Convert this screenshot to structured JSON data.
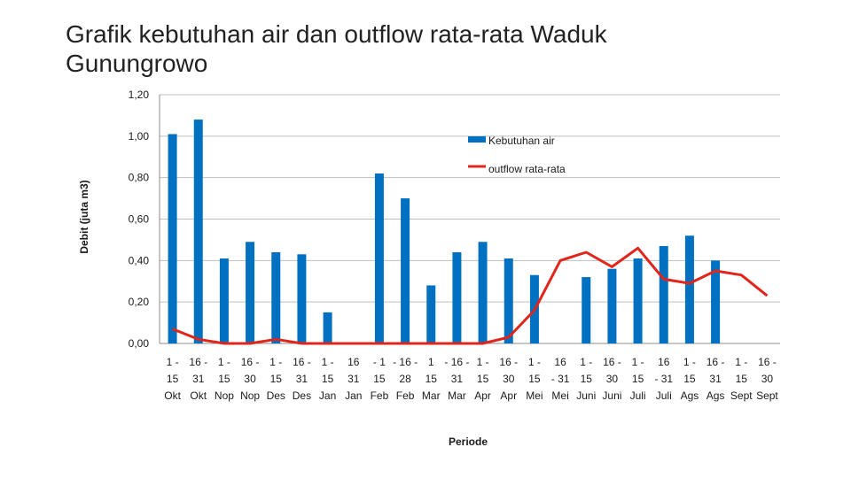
{
  "title": "Grafik kebutuhan air dan outflow rata-rata Waduk Gunungrowo",
  "chart_data": {
    "type": "bar+line",
    "ylabel": "Debit (juta m3)",
    "xlabel": "Periode",
    "ylim": [
      0,
      1.2
    ],
    "yticks": [
      "0,00",
      "0,20",
      "0,40",
      "0,60",
      "0,80",
      "1,00",
      "1,20"
    ],
    "ytick_values": [
      0,
      0.2,
      0.4,
      0.6,
      0.8,
      1.0,
      1.2
    ],
    "grid": true,
    "legend_position": "top-right",
    "categories": [
      [
        "1 -",
        "15",
        "Okt"
      ],
      [
        "16 -",
        "31",
        "Okt"
      ],
      [
        "1 -",
        "15",
        "Nop"
      ],
      [
        "16 -",
        "30",
        "Nop"
      ],
      [
        "1 -",
        "15",
        "Des"
      ],
      [
        "16 -",
        "31",
        "Des"
      ],
      [
        "1 -",
        "15",
        "Jan"
      ],
      [
        "16",
        "31",
        "Jan"
      ],
      [
        "- 1",
        "15",
        "Feb"
      ],
      [
        "- 16 -",
        "28",
        "Feb"
      ],
      [
        "1",
        "15",
        "Mar"
      ],
      [
        "- 16 -",
        "31",
        "Mar"
      ],
      [
        "1 -",
        "15",
        "Apr"
      ],
      [
        "16 -",
        "30",
        "Apr"
      ],
      [
        "1 -",
        "15",
        "Mei"
      ],
      [
        "16",
        "- 31",
        "Mei"
      ],
      [
        "1 -",
        "15",
        "Juni"
      ],
      [
        "16 -",
        "30",
        "Juni"
      ],
      [
        "1 -",
        "15",
        "Juli"
      ],
      [
        "16",
        "- 31",
        "Juli"
      ],
      [
        "1 -",
        "15",
        "Ags"
      ],
      [
        "16 -",
        "31",
        "Ags"
      ],
      [
        "1 -",
        "15",
        "Sept"
      ],
      [
        "16 -",
        "30",
        "Sept"
      ]
    ],
    "series": [
      {
        "name": "Kebutuhan air",
        "type": "bar",
        "color": "#0070c0",
        "values": [
          1.01,
          1.08,
          0.41,
          0.49,
          0.44,
          0.43,
          0.15,
          null,
          0.82,
          0.7,
          0.28,
          0.44,
          0.49,
          0.41,
          0.33,
          null,
          0.32,
          0.36,
          0.41,
          0.47,
          0.52,
          0.4,
          null,
          null
        ]
      },
      {
        "name": "outflow rata-rata",
        "type": "line",
        "color": "#e0261b",
        "values": [
          0.07,
          0.02,
          0.0,
          0.0,
          0.02,
          0.0,
          0.0,
          0.0,
          0.0,
          0.0,
          0.0,
          0.0,
          0.0,
          0.03,
          0.16,
          0.4,
          0.44,
          0.37,
          0.46,
          0.31,
          0.29,
          0.35,
          0.33,
          0.23
        ]
      }
    ]
  }
}
